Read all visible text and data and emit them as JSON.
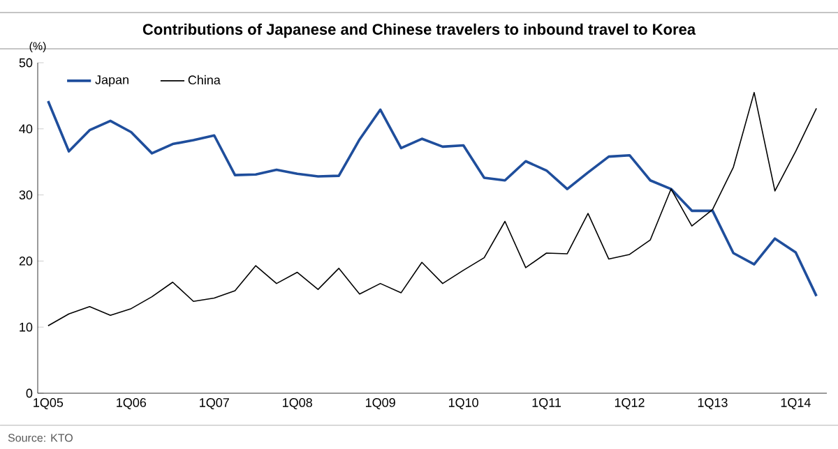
{
  "chart_data": {
    "type": "line",
    "title": "Contributions of Japanese and Chinese travelers to inbound travel to Korea",
    "ylabel": "(%)",
    "categories": [
      "1Q05",
      null,
      null,
      null,
      "1Q06",
      null,
      null,
      null,
      "1Q07",
      null,
      null,
      null,
      "1Q08",
      null,
      null,
      null,
      "1Q09",
      null,
      null,
      null,
      "1Q10",
      null,
      null,
      null,
      "1Q11",
      null,
      null,
      null,
      "1Q12",
      null,
      null,
      null,
      "1Q13",
      null,
      null,
      null,
      "1Q14",
      null
    ],
    "series": [
      {
        "name": "Japan",
        "color": "#1f4e9c",
        "values": [
          44.2,
          36.6,
          39.8,
          41.2,
          39.5,
          36.3,
          37.7,
          38.3,
          39.0,
          33.0,
          33.1,
          33.8,
          33.2,
          32.8,
          32.9,
          38.4,
          42.9,
          37.1,
          38.5,
          37.3,
          37.5,
          32.6,
          32.2,
          35.1,
          33.7,
          30.9,
          33.4,
          35.8,
          36.0,
          32.2,
          30.9,
          27.6,
          27.6,
          21.2,
          19.5,
          23.4,
          21.3,
          14.7
        ]
      },
      {
        "name": "China",
        "color": "#000000",
        "values": [
          10.2,
          12.0,
          13.1,
          11.8,
          12.8,
          14.6,
          16.8,
          13.9,
          14.4,
          15.5,
          19.3,
          16.6,
          18.3,
          15.7,
          18.9,
          15.0,
          16.6,
          15.2,
          19.8,
          16.6,
          18.6,
          20.5,
          26.0,
          19.0,
          21.2,
          21.1,
          27.2,
          20.3,
          21.0,
          23.2,
          30.9,
          25.3,
          27.8,
          34.2,
          45.5,
          30.6,
          36.6,
          43.1
        ]
      }
    ],
    "ylim": [
      0,
      50
    ],
    "yticks": [
      0,
      10,
      20,
      30,
      40,
      50
    ],
    "legend": "top left",
    "grid": false,
    "marker": "none",
    "line_style": "solid",
    "annotations": [
      "Source: KTO"
    ]
  }
}
